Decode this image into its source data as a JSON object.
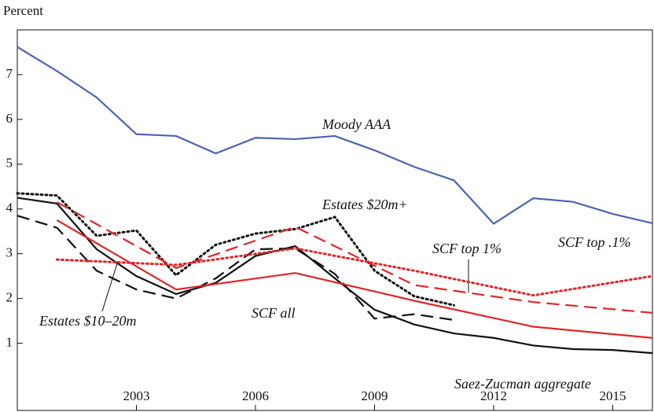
{
  "chart_data": {
    "type": "line",
    "y_label": "Percent",
    "xlim": [
      2000,
      2016
    ],
    "xticks": [
      2003,
      2006,
      2009,
      2012,
      2015
    ],
    "ylim": [
      -0.5,
      8
    ],
    "yticks": [
      1,
      2,
      3,
      4,
      5,
      6,
      7
    ],
    "series": [
      {
        "name": "Moody AAA",
        "color": "#4a64b0",
        "style": "solid",
        "x": [
          2000,
          2001,
          2002,
          2003,
          2004,
          2005,
          2006,
          2007,
          2008,
          2009,
          2010,
          2011,
          2012,
          2013,
          2014,
          2015,
          2016
        ],
        "values": [
          7.62,
          7.08,
          6.49,
          5.67,
          5.63,
          5.24,
          5.59,
          5.56,
          5.63,
          5.31,
          4.94,
          4.64,
          3.67,
          4.24,
          4.16,
          3.89,
          3.68
        ]
      },
      {
        "name": "Saez-Zucman aggregate",
        "color": "#111111",
        "style": "solid",
        "x": [
          2000,
          2001,
          2002,
          2003,
          2004,
          2005,
          2006,
          2007,
          2008,
          2009,
          2010,
          2011,
          2012,
          2013,
          2014,
          2015,
          2016
        ],
        "values": [
          4.25,
          4.12,
          3.1,
          2.5,
          2.1,
          2.35,
          2.95,
          3.17,
          2.45,
          1.75,
          1.42,
          1.22,
          1.12,
          0.95,
          0.87,
          0.85,
          0.78
        ]
      },
      {
        "name": "Estates $20m+",
        "color": "#111111",
        "style": "dotted",
        "x": [
          2000,
          2001,
          2002,
          2003,
          2004,
          2005,
          2006,
          2007,
          2008,
          2009,
          2010,
          2011
        ],
        "values": [
          4.35,
          4.3,
          3.4,
          3.52,
          2.52,
          3.2,
          3.45,
          3.55,
          3.82,
          2.62,
          2.05,
          1.85
        ]
      },
      {
        "name": "Estates $10–20m",
        "color": "#111111",
        "style": "dashed",
        "x": [
          2000,
          2001,
          2002,
          2003,
          2004,
          2005,
          2006,
          2007,
          2008,
          2009,
          2010,
          2011
        ],
        "values": [
          3.85,
          3.58,
          2.62,
          2.2,
          2.0,
          2.45,
          3.1,
          3.12,
          2.55,
          1.55,
          1.65,
          1.52
        ]
      },
      {
        "name": "SCF all",
        "color": "#e0262a",
        "style": "solid",
        "x": [
          2001,
          2004,
          2007,
          2010,
          2013,
          2016
        ],
        "values": [
          3.75,
          2.2,
          2.57,
          1.95,
          1.37,
          1.12
        ]
      },
      {
        "name": "SCF top 1%",
        "color": "#e0262a",
        "style": "dashed",
        "x": [
          2001,
          2004,
          2007,
          2010,
          2013,
          2016
        ],
        "values": [
          4.15,
          2.68,
          3.6,
          2.3,
          1.92,
          1.68
        ]
      },
      {
        "name": "SCF top .1%",
        "color": "#e0262a",
        "style": "dotted",
        "x": [
          2001,
          2004,
          2007,
          2010,
          2013,
          2016
        ],
        "values": [
          2.87,
          2.75,
          3.12,
          2.62,
          2.07,
          2.5
        ]
      }
    ]
  }
}
